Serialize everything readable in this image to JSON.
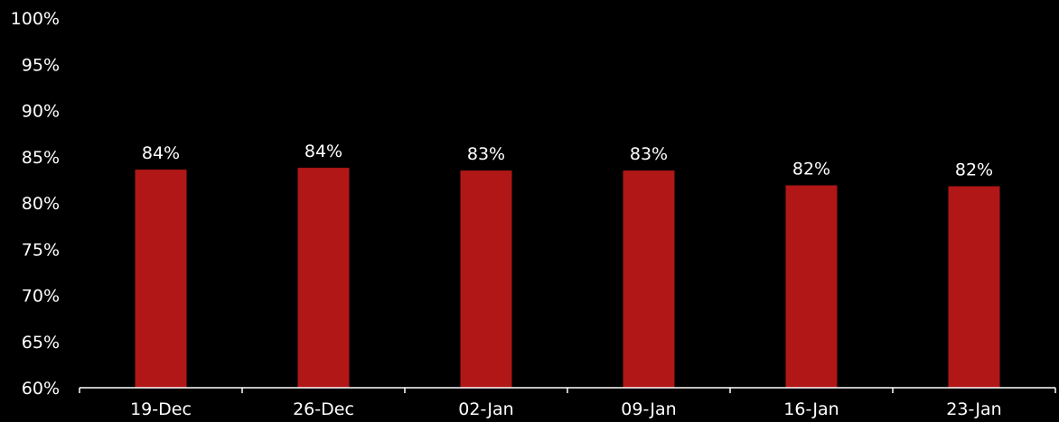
{
  "chart_data": {
    "type": "bar",
    "title": "",
    "xlabel": "",
    "ylabel": "",
    "categories": [
      "19-Dec",
      "26-Dec",
      "02-Jan",
      "09-Jan",
      "16-Jan",
      "23-Jan"
    ],
    "values": [
      83.6,
      83.8,
      83.5,
      83.5,
      81.9,
      81.8
    ],
    "data_labels": [
      "84%",
      "84%",
      "83%",
      "83%",
      "82%",
      "82%"
    ],
    "ylim": [
      60,
      100
    ],
    "y_ticks": [
      60,
      65,
      70,
      75,
      80,
      85,
      90,
      95,
      100
    ],
    "y_tick_labels": [
      "60%",
      "65%",
      "70%",
      "75%",
      "80%",
      "85%",
      "90%",
      "95%",
      "100%"
    ],
    "grid": false,
    "legend": "none",
    "colors": {
      "bar": "#b01716",
      "background": "#000000",
      "text": "#ffffff",
      "axis": "#ffffff"
    }
  }
}
